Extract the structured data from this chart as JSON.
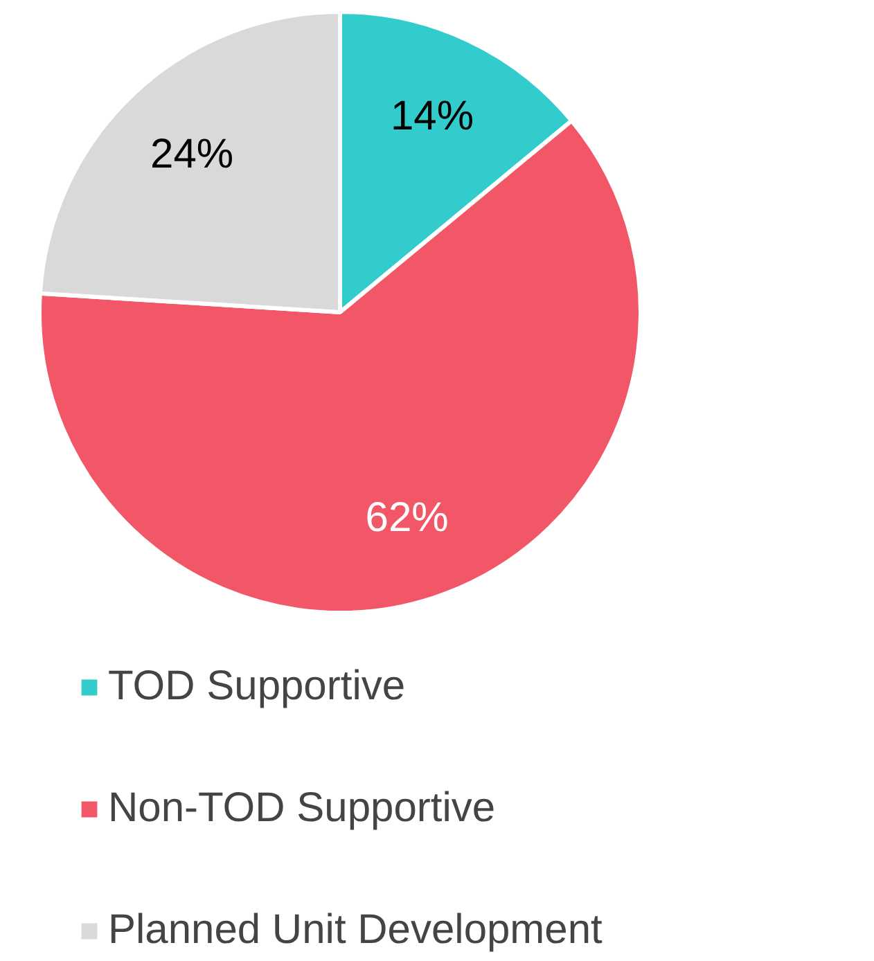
{
  "chart_data": {
    "type": "pie",
    "categories": [
      "TOD Supportive",
      "Non-TOD Supportive",
      "Planned Unit Development"
    ],
    "values": [
      14,
      62,
      24
    ],
    "colors": [
      "#33cccc",
      "#f25767",
      "#d9d9d9"
    ],
    "value_labels": [
      "14%",
      "62%",
      "24%"
    ],
    "legend": "bottom"
  }
}
